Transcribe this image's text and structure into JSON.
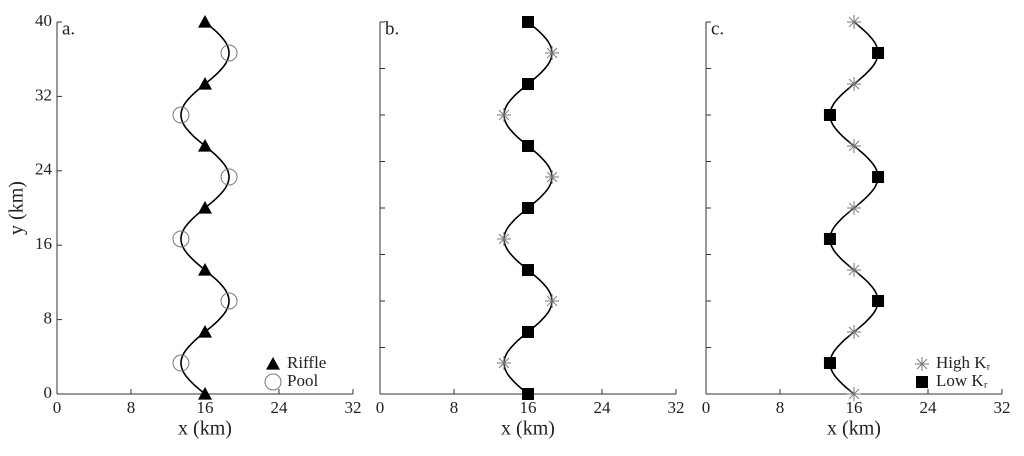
{
  "chart_data": [
    {
      "type": "scatter",
      "panel_label": "a.",
      "xlabel": "x (km)",
      "ylabel": "y (km)",
      "xlim": [
        0,
        32
      ],
      "xticks": [
        0,
        8,
        16,
        24,
        32
      ],
      "ylim": [
        0,
        40
      ],
      "yticks": [
        0,
        8,
        16,
        24,
        32,
        40
      ],
      "ytick_labels": true,
      "legend": "lower right",
      "curve": {
        "color": "#000000",
        "x": [
          16,
          14.7,
          13.75,
          13.4,
          13.75,
          14.7,
          16,
          17.3,
          18.25,
          18.6,
          18.25,
          17.3,
          16,
          14.7,
          13.75,
          13.4,
          13.75,
          14.7,
          16,
          17.3,
          18.25,
          18.6,
          18.25,
          17.3,
          16,
          14.7,
          13.75,
          13.4,
          13.75,
          14.7,
          16,
          17.3,
          18.25,
          18.6,
          18.25,
          17.3,
          16
        ],
        "y": [
          0,
          1.11,
          2.22,
          3.33,
          4.44,
          5.56,
          6.67,
          7.78,
          8.89,
          10,
          11.11,
          12.22,
          13.33,
          14.44,
          15.56,
          16.67,
          17.78,
          18.89,
          20,
          21.11,
          22.22,
          23.33,
          24.44,
          25.56,
          26.67,
          27.78,
          28.89,
          30,
          31.11,
          32.22,
          33.33,
          34.44,
          35.56,
          36.67,
          37.78,
          38.89,
          40
        ]
      },
      "series": [
        {
          "name": "Riffle",
          "marker": "triangle",
          "color": "#000000",
          "x": [
            16,
            16,
            16,
            16,
            16,
            16,
            16
          ],
          "y": [
            0,
            6.67,
            13.33,
            20,
            26.67,
            33.33,
            40
          ]
        },
        {
          "name": "Pool",
          "marker": "circle",
          "color": "#777777",
          "x": [
            13.4,
            18.6,
            13.4,
            18.6,
            13.4,
            18.6
          ],
          "y": [
            3.33,
            10,
            16.67,
            23.33,
            30,
            36.67
          ]
        }
      ]
    },
    {
      "type": "scatter",
      "panel_label": "b.",
      "xlabel": "x (km)",
      "xlim": [
        0,
        32
      ],
      "xticks": [
        0,
        8,
        16,
        24,
        32
      ],
      "ylim": [
        0,
        40
      ],
      "yticks": [
        0,
        5,
        10,
        15,
        20,
        25,
        30,
        35,
        40
      ],
      "ytick_labels": false,
      "curve": {
        "color": "#000000",
        "x": [
          16,
          14.7,
          13.75,
          13.4,
          13.75,
          14.7,
          16,
          17.3,
          18.25,
          18.6,
          18.25,
          17.3,
          16,
          14.7,
          13.75,
          13.4,
          13.75,
          14.7,
          16,
          17.3,
          18.25,
          18.6,
          18.25,
          17.3,
          16,
          14.7,
          13.75,
          13.4,
          13.75,
          14.7,
          16,
          17.3,
          18.25,
          18.6,
          18.25,
          17.3,
          16
        ],
        "y": [
          0,
          1.11,
          2.22,
          3.33,
          4.44,
          5.56,
          6.67,
          7.78,
          8.89,
          10,
          11.11,
          12.22,
          13.33,
          14.44,
          15.56,
          16.67,
          17.78,
          18.89,
          20,
          21.11,
          22.22,
          23.33,
          24.44,
          25.56,
          26.67,
          27.78,
          28.89,
          30,
          31.11,
          32.22,
          33.33,
          34.44,
          35.56,
          36.67,
          37.78,
          38.89,
          40
        ]
      },
      "series": [
        {
          "marker": "square",
          "color": "#000000",
          "x": [
            16,
            16,
            16,
            16,
            16,
            16,
            16
          ],
          "y": [
            0,
            6.67,
            13.33,
            20,
            26.67,
            33.33,
            40
          ]
        },
        {
          "marker": "asterisk",
          "color": "#777777",
          "x": [
            13.4,
            18.6,
            13.4,
            18.6,
            13.4,
            18.6
          ],
          "y": [
            3.33,
            10,
            16.67,
            23.33,
            30,
            36.67
          ]
        }
      ]
    },
    {
      "type": "scatter",
      "panel_label": "c.",
      "xlabel": "x (km)",
      "xlim": [
        0,
        32
      ],
      "xticks": [
        0,
        8,
        16,
        24,
        32
      ],
      "ylim": [
        0,
        40
      ],
      "yticks": [
        0,
        5,
        10,
        15,
        20,
        25,
        30,
        35,
        40
      ],
      "ytick_labels": false,
      "legend": "lower right",
      "curve": {
        "color": "#000000",
        "x": [
          16,
          14.7,
          13.75,
          13.4,
          13.75,
          14.7,
          16,
          17.3,
          18.25,
          18.6,
          18.25,
          17.3,
          16,
          14.7,
          13.75,
          13.4,
          13.75,
          14.7,
          16,
          17.3,
          18.25,
          18.6,
          18.25,
          17.3,
          16,
          14.7,
          13.75,
          13.4,
          13.75,
          14.7,
          16,
          17.3,
          18.25,
          18.6,
          18.25,
          17.3,
          16
        ],
        "y": [
          0,
          1.11,
          2.22,
          3.33,
          4.44,
          5.56,
          6.67,
          7.78,
          8.89,
          10,
          11.11,
          12.22,
          13.33,
          14.44,
          15.56,
          16.67,
          17.78,
          18.89,
          20,
          21.11,
          22.22,
          23.33,
          24.44,
          25.56,
          26.67,
          27.78,
          28.89,
          30,
          31.11,
          32.22,
          33.33,
          34.44,
          35.56,
          36.67,
          37.78,
          38.89,
          40
        ]
      },
      "series": [
        {
          "name": "High Kᵣ",
          "marker": "asterisk",
          "color": "#777777",
          "x": [
            16,
            16,
            16,
            16,
            16,
            16,
            16
          ],
          "y": [
            0,
            6.67,
            13.33,
            20,
            26.67,
            33.33,
            40
          ]
        },
        {
          "name": "Low Kᵣ",
          "marker": "square",
          "color": "#000000",
          "x": [
            13.4,
            18.6,
            13.4,
            18.6,
            13.4,
            18.6
          ],
          "y": [
            3.33,
            10,
            16.67,
            23.33,
            30,
            36.67
          ]
        }
      ]
    }
  ]
}
